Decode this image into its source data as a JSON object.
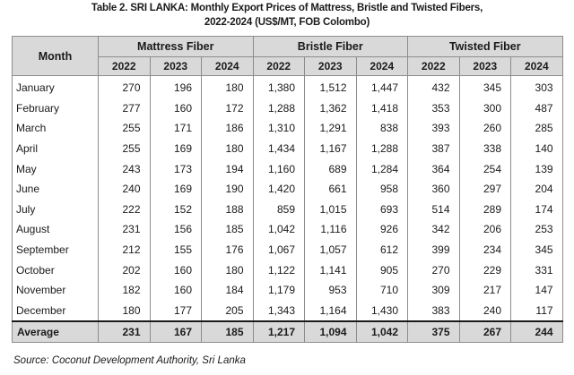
{
  "title_line1": "Table 2. SRI LANKA: Monthly Export Prices of Mattress, Bristle and Twisted Fibers,",
  "title_line2": "2022-2024 (US$/MT, FOB Colombo)",
  "headers": {
    "month": "Month",
    "groups": [
      "Mattress Fiber",
      "Bristle Fiber",
      "Twisted Fiber"
    ],
    "years": [
      "2022",
      "2023",
      "2024"
    ]
  },
  "rows": [
    {
      "month": "January",
      "values": [
        "270",
        "196",
        "180",
        "1,380",
        "1,512",
        "1,447",
        "432",
        "345",
        "303"
      ]
    },
    {
      "month": "February",
      "values": [
        "277",
        "160",
        "172",
        "1,288",
        "1,362",
        "1,418",
        "353",
        "300",
        "487"
      ]
    },
    {
      "month": "March",
      "values": [
        "255",
        "171",
        "186",
        "1,310",
        "1,291",
        "838",
        "393",
        "260",
        "285"
      ]
    },
    {
      "month": "April",
      "values": [
        "255",
        "169",
        "180",
        "1,434",
        "1,167",
        "1,288",
        "387",
        "338",
        "140"
      ]
    },
    {
      "month": "May",
      "values": [
        "243",
        "173",
        "194",
        "1,160",
        "689",
        "1,284",
        "364",
        "254",
        "139"
      ]
    },
    {
      "month": "June",
      "values": [
        "240",
        "169",
        "190",
        "1,420",
        "661",
        "958",
        "360",
        "297",
        "204"
      ]
    },
    {
      "month": "July",
      "values": [
        "222",
        "152",
        "188",
        "859",
        "1,015",
        "693",
        "514",
        "289",
        "174"
      ]
    },
    {
      "month": "August",
      "values": [
        "231",
        "156",
        "185",
        "1,042",
        "1,116",
        "926",
        "342",
        "206",
        "253"
      ]
    },
    {
      "month": "September",
      "values": [
        "212",
        "155",
        "176",
        "1,067",
        "1,057",
        "612",
        "399",
        "234",
        "345"
      ]
    },
    {
      "month": "October",
      "values": [
        "202",
        "160",
        "180",
        "1,122",
        "1,141",
        "905",
        "270",
        "229",
        "331"
      ]
    },
    {
      "month": "November",
      "values": [
        "182",
        "160",
        "184",
        "1,179",
        "953",
        "710",
        "309",
        "217",
        "147"
      ]
    },
    {
      "month": "December",
      "values": [
        "180",
        "177",
        "205",
        "1,343",
        "1,164",
        "1,430",
        "383",
        "240",
        "117"
      ]
    }
  ],
  "average": {
    "label": "Average",
    "values": [
      "231",
      "167",
      "185",
      "1,217",
      "1,094",
      "1,042",
      "375",
      "267",
      "244"
    ]
  },
  "source": "Source: Coconut Development Authority, Sri Lanka"
}
